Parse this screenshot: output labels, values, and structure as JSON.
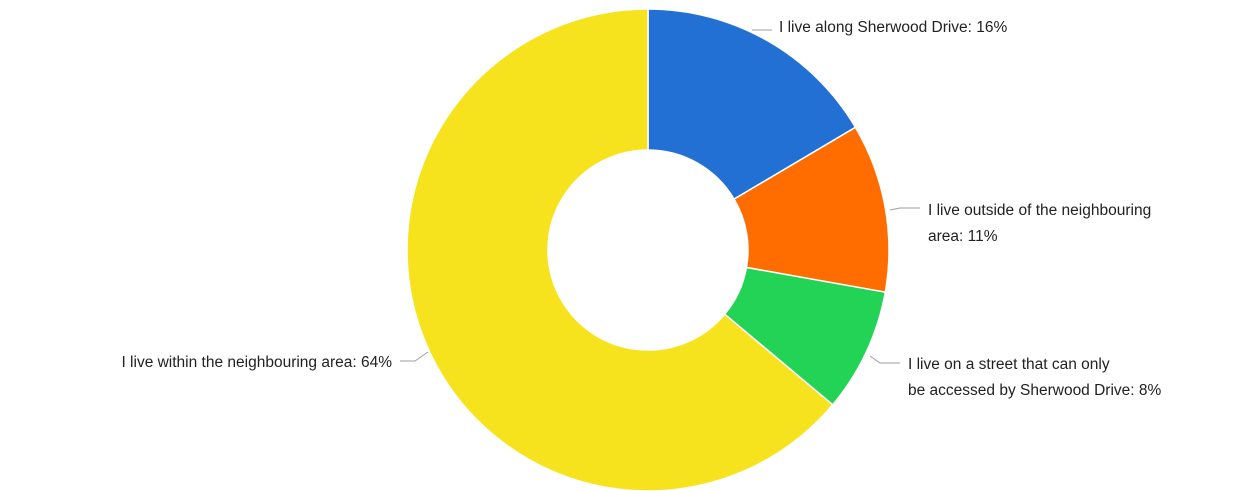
{
  "chart_data": {
    "type": "pie",
    "variant": "donut",
    "legend": "none",
    "slices": [
      {
        "label": "I live along Sherwood Drive: 16%",
        "category": "I live along Sherwood Drive",
        "value": 16.5,
        "display": "16%",
        "color": "#2270d4"
      },
      {
        "label": "I live outside of the neighbouring area: 11%",
        "category": "I live outside of the neighbouring area",
        "value": 11.3,
        "display": "11%",
        "color": "#ff6d00"
      },
      {
        "label": "I live on a street that can only be accessed by Sherwood Drive: 8%",
        "category": "I live on a street that can only be accessed by Sherwood Drive",
        "value": 8.3,
        "display": "8%",
        "color": "#23d355"
      },
      {
        "label": "I live within the neighbouring area: 64%",
        "category": "I live within the neighbouring area",
        "value": 63.9,
        "display": "64%",
        "color": "#f7e31d"
      }
    ]
  }
}
